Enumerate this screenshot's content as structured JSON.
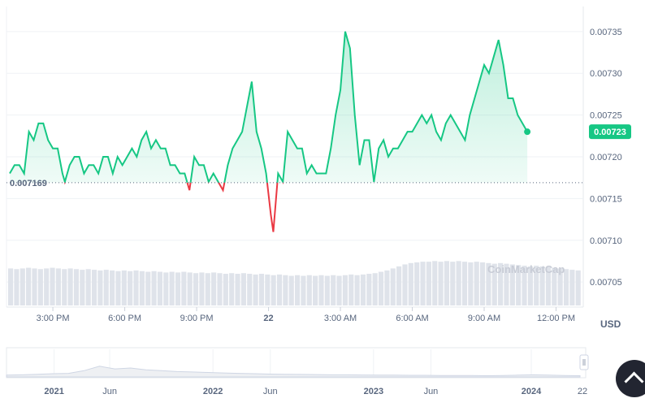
{
  "chart_data": {
    "type": "area",
    "currency_label": "USD",
    "reference_price": 0.007169,
    "reference_label": "0.007169",
    "current_price": 0.00723,
    "current_label": "0.00723",
    "watermark": "CoinMarketCap",
    "ylim": [
      0.00702,
      0.00738
    ],
    "y_ticks": [
      {
        "value": 0.00735,
        "label": "0.00735"
      },
      {
        "value": 0.0073,
        "label": "0.00730"
      },
      {
        "value": 0.00725,
        "label": "0.00725"
      },
      {
        "value": 0.0072,
        "label": "0.00720"
      },
      {
        "value": 0.00715,
        "label": "0.00715"
      },
      {
        "value": 0.0071,
        "label": "0.00710"
      },
      {
        "value": 0.00705,
        "label": "0.00705"
      }
    ],
    "x_ticks": [
      {
        "t": 1.8,
        "label": "3:00 PM",
        "bold": false
      },
      {
        "t": 4.8,
        "label": "6:00 PM",
        "bold": false
      },
      {
        "t": 7.8,
        "label": "9:00 PM",
        "bold": false
      },
      {
        "t": 10.8,
        "label": "22",
        "bold": true
      },
      {
        "t": 13.8,
        "label": "3:00 AM",
        "bold": false
      },
      {
        "t": 16.8,
        "label": "6:00 AM",
        "bold": false
      },
      {
        "t": 19.8,
        "label": "9:00 AM",
        "bold": false
      },
      {
        "t": 22.8,
        "label": "12:00 PM",
        "bold": false
      }
    ],
    "series": [
      {
        "name": "Price",
        "points": [
          [
            0,
            0.00718
          ],
          [
            0.2,
            0.00719
          ],
          [
            0.4,
            0.00719
          ],
          [
            0.6,
            0.00718
          ],
          [
            0.8,
            0.00723
          ],
          [
            1,
            0.00722
          ],
          [
            1.2,
            0.00724
          ],
          [
            1.4,
            0.00724
          ],
          [
            1.6,
            0.00722
          ],
          [
            1.8,
            0.00721
          ],
          [
            2,
            0.00721
          ],
          [
            2.2,
            0.00718
          ],
          [
            2.3,
            0.00717
          ],
          [
            2.5,
            0.00719
          ],
          [
            2.7,
            0.0072
          ],
          [
            2.9,
            0.0072
          ],
          [
            3.1,
            0.00718
          ],
          [
            3.3,
            0.00719
          ],
          [
            3.5,
            0.00719
          ],
          [
            3.7,
            0.00718
          ],
          [
            3.9,
            0.0072
          ],
          [
            4.1,
            0.0072
          ],
          [
            4.3,
            0.00718
          ],
          [
            4.5,
            0.0072
          ],
          [
            4.7,
            0.00719
          ],
          [
            4.9,
            0.0072
          ],
          [
            5.1,
            0.00721
          ],
          [
            5.3,
            0.0072
          ],
          [
            5.5,
            0.00722
          ],
          [
            5.7,
            0.00723
          ],
          [
            5.9,
            0.00721
          ],
          [
            6.1,
            0.00722
          ],
          [
            6.3,
            0.00721
          ],
          [
            6.5,
            0.00721
          ],
          [
            6.7,
            0.00719
          ],
          [
            6.9,
            0.00719
          ],
          [
            7.1,
            0.00718
          ],
          [
            7.3,
            0.00718
          ],
          [
            7.5,
            0.00716
          ],
          [
            7.7,
            0.0072
          ],
          [
            7.9,
            0.00719
          ],
          [
            8.1,
            0.00719
          ],
          [
            8.3,
            0.00717
          ],
          [
            8.5,
            0.00718
          ],
          [
            8.7,
            0.00717
          ],
          [
            8.9,
            0.00716
          ],
          [
            9.1,
            0.00719
          ],
          [
            9.3,
            0.00721
          ],
          [
            9.5,
            0.00722
          ],
          [
            9.7,
            0.00723
          ],
          [
            9.9,
            0.00726
          ],
          [
            10.1,
            0.00729
          ],
          [
            10.3,
            0.00723
          ],
          [
            10.5,
            0.00721
          ],
          [
            10.7,
            0.00718
          ],
          [
            10.9,
            0.00713
          ],
          [
            11,
            0.00711
          ],
          [
            11.2,
            0.00718
          ],
          [
            11.4,
            0.00717
          ],
          [
            11.6,
            0.00723
          ],
          [
            11.8,
            0.00722
          ],
          [
            12,
            0.00721
          ],
          [
            12.2,
            0.00721
          ],
          [
            12.4,
            0.00718
          ],
          [
            12.6,
            0.00719
          ],
          [
            12.8,
            0.00718
          ],
          [
            13,
            0.00718
          ],
          [
            13.2,
            0.00718
          ],
          [
            13.4,
            0.00721
          ],
          [
            13.6,
            0.00725
          ],
          [
            13.8,
            0.00728
          ],
          [
            14,
            0.00735
          ],
          [
            14.2,
            0.00733
          ],
          [
            14.4,
            0.00725
          ],
          [
            14.6,
            0.00719
          ],
          [
            14.8,
            0.00722
          ],
          [
            15,
            0.00722
          ],
          [
            15.2,
            0.00717
          ],
          [
            15.4,
            0.00721
          ],
          [
            15.6,
            0.00722
          ],
          [
            15.8,
            0.0072
          ],
          [
            16,
            0.00721
          ],
          [
            16.2,
            0.00721
          ],
          [
            16.4,
            0.00722
          ],
          [
            16.6,
            0.00723
          ],
          [
            16.8,
            0.00723
          ],
          [
            17,
            0.00724
          ],
          [
            17.2,
            0.00725
          ],
          [
            17.4,
            0.00724
          ],
          [
            17.6,
            0.00725
          ],
          [
            17.8,
            0.00723
          ],
          [
            18,
            0.00722
          ],
          [
            18.2,
            0.00724
          ],
          [
            18.4,
            0.00725
          ],
          [
            18.6,
            0.00724
          ],
          [
            18.8,
            0.00723
          ],
          [
            19,
            0.00722
          ],
          [
            19.2,
            0.00725
          ],
          [
            19.4,
            0.00727
          ],
          [
            19.6,
            0.00729
          ],
          [
            19.8,
            0.00731
          ],
          [
            20,
            0.0073
          ],
          [
            20.2,
            0.00732
          ],
          [
            20.4,
            0.00734
          ],
          [
            20.6,
            0.00731
          ],
          [
            20.8,
            0.00727
          ],
          [
            21,
            0.00727
          ],
          [
            21.2,
            0.00725
          ],
          [
            21.4,
            0.00724
          ],
          [
            21.6,
            0.00723
          ]
        ]
      }
    ],
    "volume": [
      0.55,
      0.54,
      0.55,
      0.56,
      0.55,
      0.54,
      0.55,
      0.56,
      0.55,
      0.54,
      0.55,
      0.54,
      0.53,
      0.54,
      0.53,
      0.52,
      0.53,
      0.52,
      0.51,
      0.52,
      0.51,
      0.52,
      0.51,
      0.5,
      0.51,
      0.5,
      0.49,
      0.5,
      0.49,
      0.5,
      0.49,
      0.48,
      0.49,
      0.48,
      0.49,
      0.48,
      0.47,
      0.48,
      0.47,
      0.48,
      0.47,
      0.46,
      0.47,
      0.46,
      0.45,
      0.46,
      0.45,
      0.44,
      0.45,
      0.44,
      0.45,
      0.44,
      0.45,
      0.44,
      0.45,
      0.44,
      0.45,
      0.46,
      0.45,
      0.46,
      0.47,
      0.48,
      0.5,
      0.52,
      0.55,
      0.58,
      0.61,
      0.63,
      0.64,
      0.65,
      0.65,
      0.66,
      0.65,
      0.66,
      0.65,
      0.66,
      0.65,
      0.64,
      0.65,
      0.64,
      0.63,
      0.62,
      0.63,
      0.62,
      0.61,
      0.6,
      0.59,
      0.58,
      0.59,
      0.58,
      0.57,
      0.56,
      0.55,
      0.54,
      0.53,
      0.52
    ],
    "navigator": {
      "x_labels": [
        {
          "t": 0.083,
          "label": "2021",
          "bold": true
        },
        {
          "t": 0.18,
          "label": "Jun",
          "bold": false
        },
        {
          "t": 0.36,
          "label": "2022",
          "bold": true
        },
        {
          "t": 0.46,
          "label": "Jun",
          "bold": false
        },
        {
          "t": 0.64,
          "label": "2023",
          "bold": true
        },
        {
          "t": 0.74,
          "label": "Jun",
          "bold": false
        },
        {
          "t": 0.915,
          "label": "2024",
          "bold": true
        },
        {
          "t": 1.0,
          "label": "22",
          "bold": false
        }
      ],
      "profile": [
        0.1,
        0.12,
        0.15,
        0.18,
        0.2,
        0.35,
        0.6,
        0.45,
        0.5,
        0.4,
        0.35,
        0.3,
        0.28,
        0.25,
        0.22,
        0.2,
        0.18,
        0.16,
        0.15,
        0.14,
        0.13,
        0.12,
        0.12,
        0.11,
        0.1,
        0.1,
        0.09,
        0.09,
        0.08,
        0.08,
        0.08,
        0.07,
        0.08,
        0.1,
        0.12,
        0.1,
        0.08,
        0.07
      ]
    }
  }
}
